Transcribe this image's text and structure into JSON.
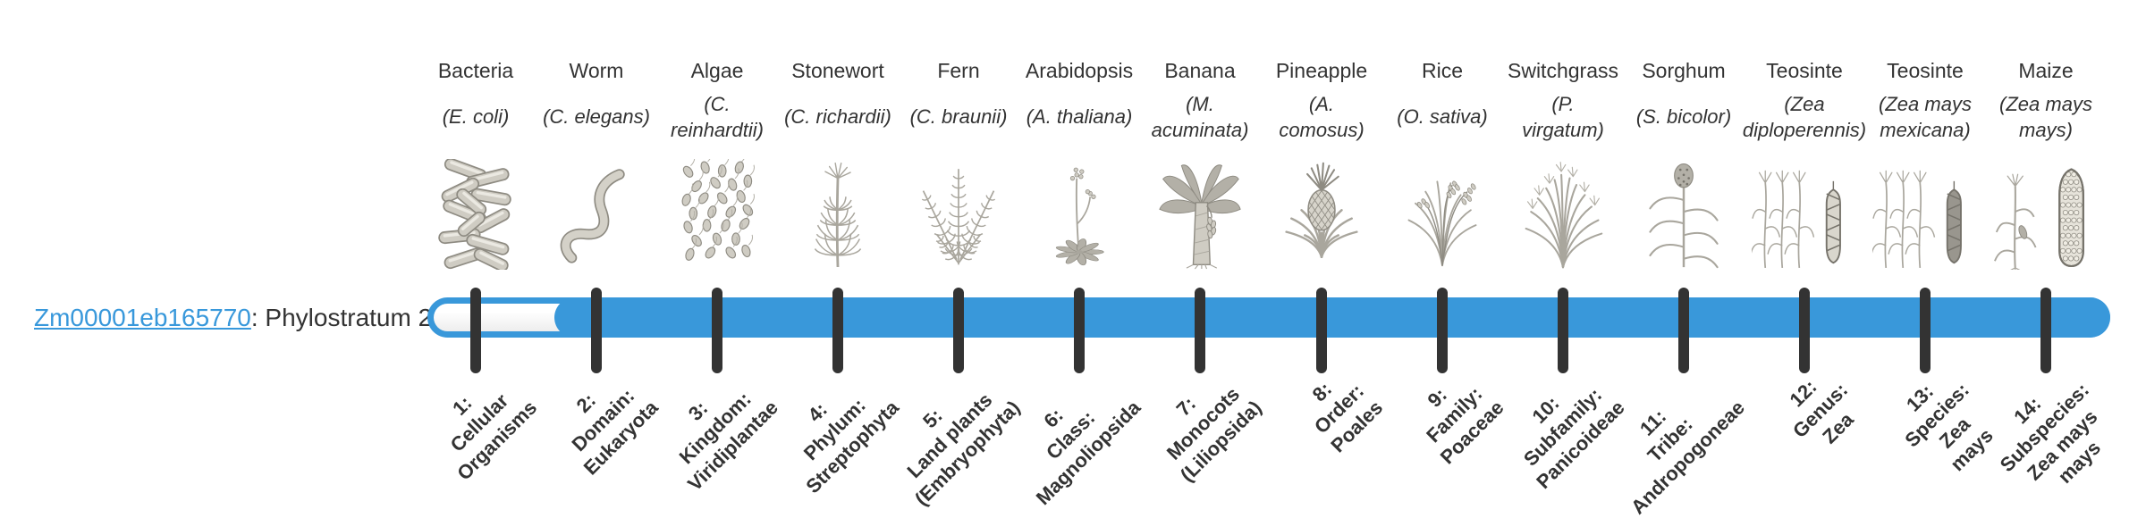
{
  "gene": {
    "id": "Zm00001eb165770",
    "annotation": ": Phylostratum 2"
  },
  "bar": {
    "highlighted_phylostratum": 2,
    "total_phylostrata": 14,
    "fill_color": "#3998da",
    "tick_color": "#333333",
    "link_color": "#3898db",
    "text_color": "#333333",
    "illustration_color": "#b3b0a7"
  },
  "columns": [
    {
      "common_name": "Bacteria",
      "scientific_name": "(E. coli)",
      "rank_label": "1:\nCellular\nOrganisms",
      "icon": "bacteria-icon"
    },
    {
      "common_name": "Worm",
      "scientific_name": "(C. elegans)",
      "rank_label": "2:\nDomain:\nEukaryota",
      "icon": "worm-icon"
    },
    {
      "common_name": "Algae",
      "scientific_name": "(C.\nreinhardtii)",
      "rank_label": "3:\nKingdom:\nViridiplantae",
      "icon": "algae-icon"
    },
    {
      "common_name": "Stonewort",
      "scientific_name": "(C. richardii)",
      "rank_label": "4:\nPhylum:\nStreptophyta",
      "icon": "stonewort-icon"
    },
    {
      "common_name": "Fern",
      "scientific_name": "(C. braunii)",
      "rank_label": "5:\nLand plants\n(Embryophyta)",
      "icon": "fern-icon"
    },
    {
      "common_name": "Arabidopsis",
      "scientific_name": "(A. thaliana)",
      "rank_label": "6:\nClass:\nMagnoliopsida",
      "icon": "arabidopsis-icon"
    },
    {
      "common_name": "Banana",
      "scientific_name": "(M.\nacuminata)",
      "rank_label": "7:\nMonocots\n(Liliopsida)",
      "icon": "banana-icon"
    },
    {
      "common_name": "Pineapple",
      "scientific_name": "(A.\ncomosus)",
      "rank_label": "8:\nOrder:\nPoales",
      "icon": "pineapple-icon"
    },
    {
      "common_name": "Rice",
      "scientific_name": "(O. sativa)",
      "rank_label": "9:\nFamily:\nPoaceae",
      "icon": "rice-icon"
    },
    {
      "common_name": "Switchgrass",
      "scientific_name": "(P.\nvirgatum)",
      "rank_label": "10:\nSubfamily:\nPanicoideae",
      "icon": "switchgrass-icon"
    },
    {
      "common_name": "Sorghum",
      "scientific_name": "(S. bicolor)",
      "rank_label": "11:\nTribe:\nAndropogoneae",
      "icon": "sorghum-icon"
    },
    {
      "common_name": "Teosinte",
      "scientific_name": "(Zea\ndiploperennis)",
      "rank_label": "12:\nGenus:\nZea",
      "icon": "teosinte-diploperennis-icon"
    },
    {
      "common_name": "Teosinte",
      "scientific_name": "(Zea mays\nmexicana)",
      "rank_label": "13:\nSpecies:\nZea\nmays",
      "icon": "teosinte-mexicana-icon"
    },
    {
      "common_name": "Maize",
      "scientific_name": "(Zea mays\nmays)",
      "rank_label": "14:\nSubspecies:\nZea mays\nmays",
      "icon": "maize-icon"
    }
  ]
}
